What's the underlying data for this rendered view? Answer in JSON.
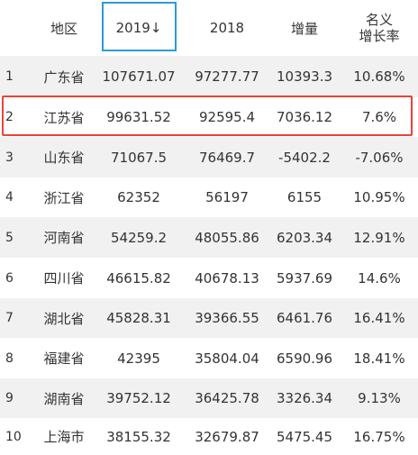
{
  "header": {
    "region": "地区",
    "v2019": "2019↓",
    "v2018": "2018",
    "increase": "增量",
    "rate_line1": "名义",
    "rate_line2": "增长率"
  },
  "rows": [
    {
      "rank": "1",
      "region": "广东省",
      "v2019": "107671.07",
      "v2018": "97277.77",
      "increase": "10393.3",
      "rate": "10.68%"
    },
    {
      "rank": "2",
      "region": "江苏省",
      "v2019": "99631.52",
      "v2018": "92595.4",
      "increase": "7036.12",
      "rate": "7.6%"
    },
    {
      "rank": "3",
      "region": "山东省",
      "v2019": "71067.5",
      "v2018": "76469.7",
      "increase": "-5402.2",
      "rate": "-7.06%"
    },
    {
      "rank": "4",
      "region": "浙江省",
      "v2019": "62352",
      "v2018": "56197",
      "increase": "6155",
      "rate": "10.95%"
    },
    {
      "rank": "5",
      "region": "河南省",
      "v2019": "54259.2",
      "v2018": "48055.86",
      "increase": "6203.34",
      "rate": "12.91%"
    },
    {
      "rank": "6",
      "region": "四川省",
      "v2019": "46615.82",
      "v2018": "40678.13",
      "increase": "5937.69",
      "rate": "14.6%"
    },
    {
      "rank": "7",
      "region": "湖北省",
      "v2019": "45828.31",
      "v2018": "39366.55",
      "increase": "6461.76",
      "rate": "16.41%"
    },
    {
      "rank": "8",
      "region": "福建省",
      "v2019": "42395",
      "v2018": "35804.04",
      "increase": "6590.96",
      "rate": "18.41%"
    },
    {
      "rank": "9",
      "region": "湖南省",
      "v2019": "39752.12",
      "v2018": "36425.78",
      "increase": "3326.34",
      "rate": "9.13%"
    },
    {
      "rank": "10",
      "region": "上海市",
      "v2019": "38155.32",
      "v2018": "32679.87",
      "increase": "5475.45",
      "rate": "16.75%"
    }
  ],
  "colors": {
    "sort_border": "#2e9bd6",
    "highlight_border": "#e8443a",
    "stripe": "#f1f1f1"
  }
}
